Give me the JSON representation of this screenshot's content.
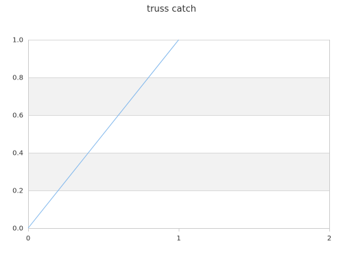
{
  "chart_data": {
    "type": "line",
    "title": "truss catch",
    "xlabel": "",
    "ylabel": "",
    "xlim": [
      0,
      2
    ],
    "ylim": [
      0,
      1
    ],
    "x_ticks": [
      "0",
      "1",
      "2"
    ],
    "y_ticks": [
      "0.0",
      "0.2",
      "0.4",
      "0.6",
      "0.8",
      "1.0"
    ],
    "grid": true,
    "alternating_bands": true,
    "legend": "none",
    "series": [
      {
        "color": "#7cb5ec",
        "points": [
          [
            0,
            0
          ],
          [
            1,
            1
          ]
        ]
      }
    ]
  }
}
